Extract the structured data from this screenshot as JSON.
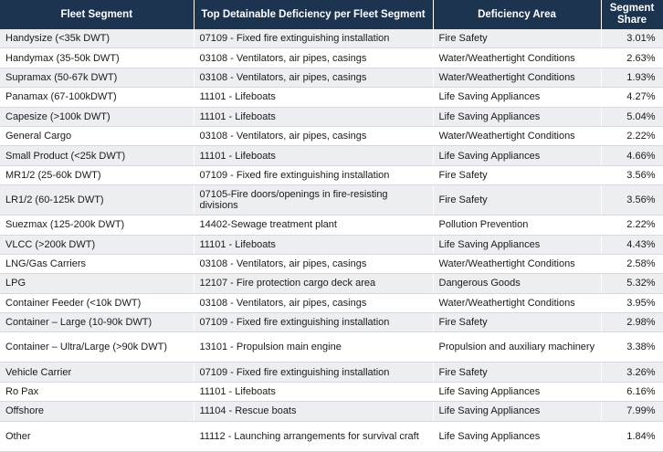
{
  "table": {
    "header": [
      "Fleet Segment",
      "Top Detainable Deficiency per Fleet Segment",
      "Deficiency Area",
      "Segment Share"
    ],
    "rows": [
      [
        "Handysize (<35k DWT)",
        "07109 - Fixed fire extinguishing installation",
        "Fire Safety",
        "3.01%"
      ],
      [
        "Handymax (35-50k DWT)",
        "03108 - Ventilators, air pipes, casings",
        "Water/Weathertight Conditions",
        "2.63%"
      ],
      [
        "Supramax (50-67k DWT)",
        "03108 - Ventilators, air pipes, casings",
        "Water/Weathertight Conditions",
        "1.93%"
      ],
      [
        "Panamax (67-100kDWT)",
        "11101 - Lifeboats",
        "Life Saving Appliances",
        "4.27%"
      ],
      [
        "Capesize (>100k DWT)",
        "11101 - Lifeboats",
        "Life Saving Appliances",
        "5.04%"
      ],
      [
        "General Cargo",
        "03108 - Ventilators, air pipes, casings",
        "Water/Weathertight Conditions",
        "2.22%"
      ],
      [
        "Small Product (<25k DWT)",
        "11101 - Lifeboats",
        "Life Saving Appliances",
        "4.66%"
      ],
      [
        "MR1/2 (25-60k DWT)",
        "07109 - Fixed fire extinguishing installation",
        "Fire Safety",
        "3.56%"
      ],
      [
        "LR1/2 (60-125k DWT)",
        "07105-Fire doors/openings in fire-resisting divisions",
        "Fire Safety",
        "3.56%"
      ],
      [
        "Suezmax (125-200k DWT)",
        "14402-Sewage treatment plant",
        "Pollution Prevention",
        "2.22%"
      ],
      [
        "VLCC (>200k DWT)",
        "11101 - Lifeboats",
        "Life Saving Appliances",
        "4.43%"
      ],
      [
        "LNG/Gas Carriers",
        "03108 - Ventilators, air pipes, casings",
        "Water/Weathertight Conditions",
        "2.58%"
      ],
      [
        "LPG",
        "12107 - Fire protection cargo deck area",
        "Dangerous Goods",
        "5.32%"
      ],
      [
        "Container Feeder (<10k DWT)",
        "03108 - Ventilators, air pipes, casings",
        "Water/Weathertight Conditions",
        "3.95%"
      ],
      [
        "Container – Large (10-90k DWT)",
        "07109 - Fixed fire extinguishing installation",
        "Fire Safety",
        "2.98%"
      ],
      [
        "Container – Ultra/Large (>90k DWT)",
        "13101 - Propulsion main engine",
        "Propulsion and auxiliary machinery",
        "3.38%"
      ],
      [
        "Vehicle Carrier",
        "07109 - Fixed fire extinguishing installation",
        "Fire Safety",
        "3.26%"
      ],
      [
        "Ro Pax",
        "11101 - Lifeboats",
        "Life Saving Appliances",
        "6.16%"
      ],
      [
        "Offshore",
        "11104 - Rescue boats",
        "Life Saving Appliances",
        "7.99%"
      ],
      [
        "Other",
        "11112 - Launching arrangements for survival craft",
        "Life Saving Appliances",
        "1.84%"
      ]
    ]
  }
}
